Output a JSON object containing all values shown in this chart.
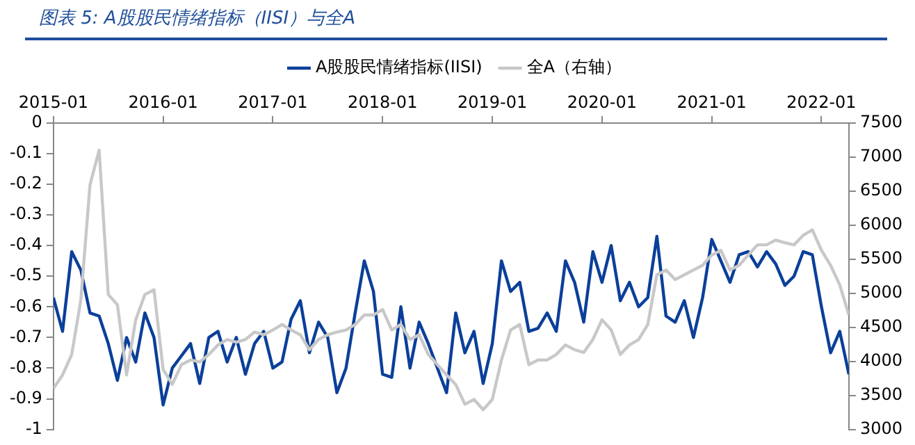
{
  "chart_data": {
    "type": "line",
    "title": "图表 5:  A股股民情绪指标（IISI）与全A",
    "x": [
      "2015-01",
      "2015-02",
      "2015-03",
      "2015-04",
      "2015-05",
      "2015-06",
      "2015-07",
      "2015-08",
      "2015-09",
      "2015-10",
      "2015-11",
      "2015-12",
      "2016-01",
      "2016-02",
      "2016-03",
      "2016-04",
      "2016-05",
      "2016-06",
      "2016-07",
      "2016-08",
      "2016-09",
      "2016-10",
      "2016-11",
      "2016-12",
      "2017-01",
      "2017-02",
      "2017-03",
      "2017-04",
      "2017-05",
      "2017-06",
      "2017-07",
      "2017-08",
      "2017-09",
      "2017-10",
      "2017-11",
      "2017-12",
      "2018-01",
      "2018-02",
      "2018-03",
      "2018-04",
      "2018-05",
      "2018-06",
      "2018-07",
      "2018-08",
      "2018-09",
      "2018-10",
      "2018-11",
      "2018-12",
      "2019-01",
      "2019-02",
      "2019-03",
      "2019-04",
      "2019-05",
      "2019-06",
      "2019-07",
      "2019-08",
      "2019-09",
      "2019-10",
      "2019-11",
      "2019-12",
      "2020-01",
      "2020-02",
      "2020-03",
      "2020-04",
      "2020-05",
      "2020-06",
      "2020-07",
      "2020-08",
      "2020-09",
      "2020-10",
      "2020-11",
      "2020-12",
      "2021-01",
      "2021-02",
      "2021-03",
      "2021-04",
      "2021-05",
      "2021-06",
      "2021-07",
      "2021-08",
      "2021-09",
      "2021-10",
      "2021-11",
      "2021-12",
      "2022-01",
      "2022-02",
      "2022-03",
      "2022-04"
    ],
    "series": [
      {
        "name": "A股股民情绪指标(IISI)",
        "color": "#0b3f9a",
        "values": [
          -0.57,
          -0.68,
          -0.42,
          -0.48,
          -0.62,
          -0.63,
          -0.72,
          -0.84,
          -0.7,
          -0.78,
          -0.62,
          -0.7,
          -0.92,
          -0.8,
          -0.76,
          -0.72,
          -0.85,
          -0.7,
          -0.68,
          -0.78,
          -0.7,
          -0.82,
          -0.72,
          -0.68,
          -0.8,
          -0.78,
          -0.64,
          -0.58,
          -0.75,
          -0.65,
          -0.7,
          -0.88,
          -0.8,
          -0.62,
          -0.45,
          -0.55,
          -0.82,
          -0.83,
          -0.6,
          -0.8,
          -0.65,
          -0.72,
          -0.8,
          -0.88,
          -0.62,
          -0.75,
          -0.68,
          -0.85,
          -0.72,
          -0.45,
          -0.55,
          -0.52,
          -0.68,
          -0.67,
          -0.62,
          -0.68,
          -0.45,
          -0.52,
          -0.65,
          -0.42,
          -0.52,
          -0.4,
          -0.58,
          -0.52,
          -0.6,
          -0.57,
          -0.37,
          -0.63,
          -0.65,
          -0.58,
          -0.7,
          -0.57,
          -0.38,
          -0.45,
          -0.52,
          -0.43,
          -0.42,
          -0.47,
          -0.42,
          -0.46,
          -0.53,
          -0.5,
          -0.42,
          -0.43,
          -0.6,
          -0.75,
          -0.68,
          -0.82
        ]
      },
      {
        "name": "全A（右轴）",
        "color": "#c8c8c8",
        "axis": "y2",
        "values": [
          3600,
          3800,
          4100,
          4900,
          6590,
          7100,
          4980,
          4830,
          3800,
          4610,
          4980,
          5050,
          3880,
          3660,
          3950,
          4020,
          3990,
          4100,
          4240,
          4320,
          4280,
          4320,
          4430,
          4390,
          4460,
          4540,
          4460,
          4390,
          4170,
          4320,
          4390,
          4430,
          4460,
          4540,
          4680,
          4680,
          4760,
          4460,
          4540,
          4320,
          4390,
          4100,
          3950,
          3800,
          3660,
          3370,
          3440,
          3290,
          3440,
          4020,
          4460,
          4540,
          3950,
          4020,
          4020,
          4100,
          4240,
          4170,
          4130,
          4320,
          4610,
          4460,
          4100,
          4240,
          4320,
          4540,
          5270,
          5340,
          5200,
          5270,
          5340,
          5410,
          5560,
          5630,
          5340,
          5410,
          5560,
          5710,
          5710,
          5780,
          5740,
          5710,
          5850,
          5930,
          5630,
          5410,
          5120,
          4680
        ]
      }
    ],
    "xlim": [
      "2015-01",
      "2022-04"
    ],
    "xticks": [
      "2015-01",
      "2016-01",
      "2017-01",
      "2018-01",
      "2019-01",
      "2020-01",
      "2021-01",
      "2022-01"
    ],
    "ylim": [
      -1,
      0
    ],
    "yticks": [
      0,
      -0.1,
      -0.2,
      -0.3,
      -0.4,
      -0.5,
      -0.6,
      -0.7,
      -0.8,
      -0.9,
      -1
    ],
    "y2lim": [
      3000,
      7500
    ],
    "y2ticks": [
      3000,
      3500,
      4000,
      4500,
      5000,
      5500,
      6000,
      6500,
      7000,
      7500
    ],
    "grid": false,
    "legend": "top",
    "marker": "none",
    "line_style": "solid"
  }
}
